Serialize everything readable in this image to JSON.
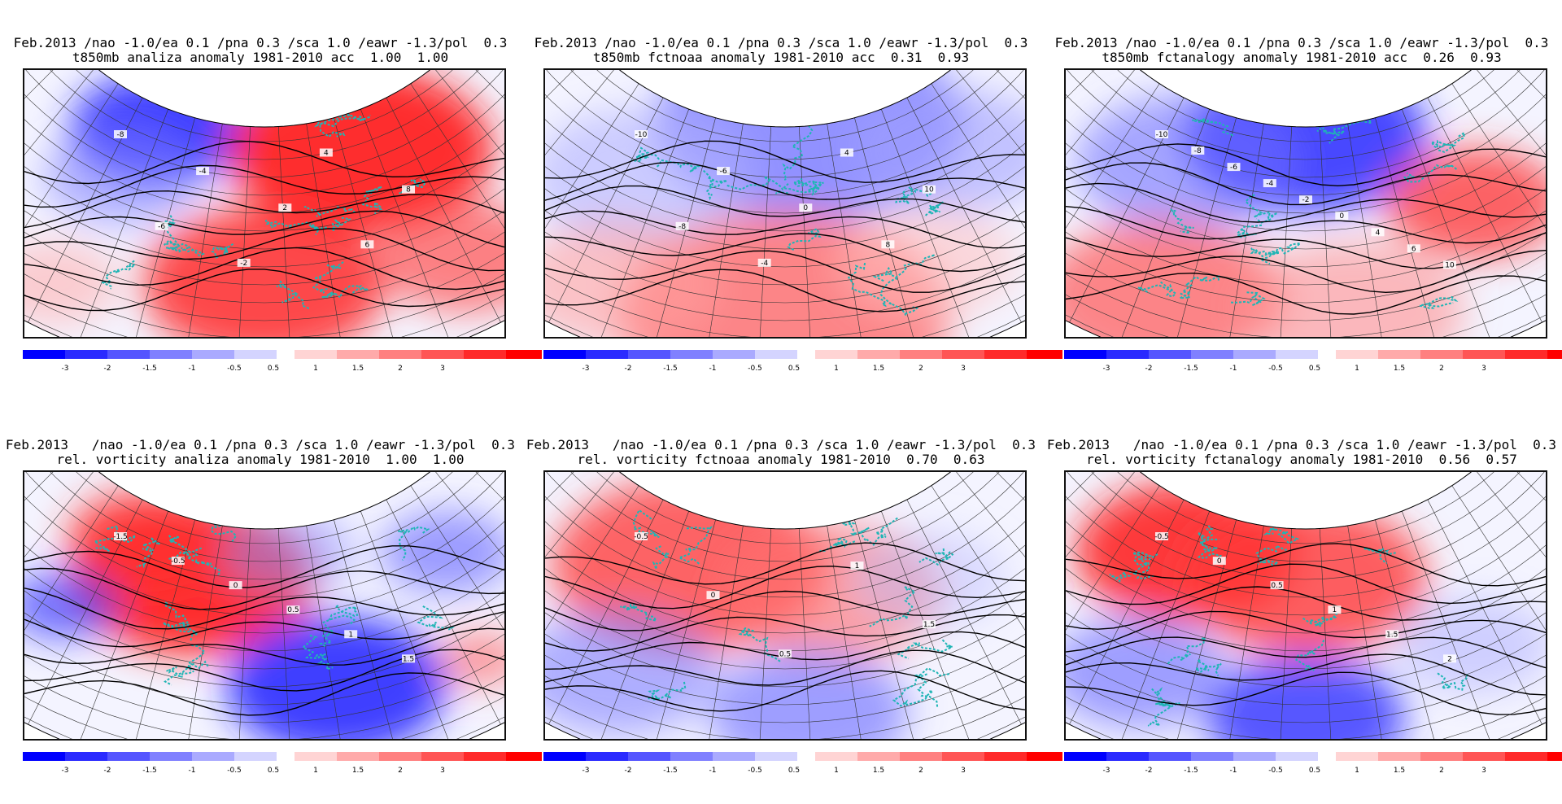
{
  "panels": [
    {
      "title_line1": "Feb.2013 /nao -1.0/ea 0.1 /pna 0.3 /sca 1.0 /eawr -1.3/pol  0.3",
      "title_line2": "t850mb analiza anomaly 1981-2010 acc  1.00  1.00",
      "map": {
        "field": "t850mb",
        "source": "analiza",
        "blobs": [
          {
            "u": 0.28,
            "v": 0.22,
            "r": 0.16,
            "c": "#2020ff",
            "o": 0.85
          },
          {
            "u": 0.2,
            "v": 0.4,
            "r": 0.14,
            "c": "#8080ff",
            "o": 0.55
          },
          {
            "u": 0.7,
            "v": 0.3,
            "r": 0.24,
            "c": "#ff1a1a",
            "o": 0.9
          },
          {
            "u": 0.5,
            "v": 0.8,
            "r": 0.22,
            "c": "#ff2a2a",
            "o": 0.85
          },
          {
            "u": 0.92,
            "v": 0.7,
            "r": 0.16,
            "c": "#ff5050",
            "o": 0.7
          },
          {
            "u": 0.06,
            "v": 0.8,
            "r": 0.12,
            "c": "#ffb0b0",
            "o": 0.6
          }
        ],
        "contour_labels": [
          "-8",
          "-6",
          "-4",
          "-2",
          "2",
          "4",
          "6",
          "8"
        ]
      }
    },
    {
      "title_line1": "Feb.2013 /nao -1.0/ea 0.1 /pna 0.3 /sca 1.0 /eawr -1.3/pol  0.3",
      "title_line2": "t850mb fctnoaa anomaly 1981-2010 acc  0.31  0.93",
      "map": {
        "field": "t850mb",
        "source": "fctnoaa",
        "blobs": [
          {
            "u": 0.55,
            "v": 0.2,
            "r": 0.28,
            "c": "#7070ff",
            "o": 0.75
          },
          {
            "u": 0.2,
            "v": 0.4,
            "r": 0.2,
            "c": "#b0b0ff",
            "o": 0.6
          },
          {
            "u": 0.85,
            "v": 0.3,
            "r": 0.18,
            "c": "#a0a0ff",
            "o": 0.6
          },
          {
            "u": 0.5,
            "v": 0.92,
            "r": 0.3,
            "c": "#ff6060",
            "o": 0.75
          },
          {
            "u": 0.15,
            "v": 0.8,
            "r": 0.18,
            "c": "#ffa0a0",
            "o": 0.6
          },
          {
            "u": 0.8,
            "v": 0.72,
            "r": 0.16,
            "c": "#ffc0c0",
            "o": 0.55
          }
        ],
        "contour_labels": [
          "-10",
          "-8",
          "-6",
          "-4",
          "0",
          "4",
          "8",
          "10"
        ]
      }
    },
    {
      "title_line1": "Feb.2013 /nao -1.0/ea 0.1 /pna 0.3 /sca 1.0 /eawr -1.3/pol  0.3",
      "title_line2": "t850mb fctanalogy anomaly 1981-2010 acc  0.26  0.93",
      "map": {
        "field": "t850mb",
        "source": "fctanalogy",
        "blobs": [
          {
            "u": 0.5,
            "v": 0.25,
            "r": 0.22,
            "c": "#2a2aff",
            "o": 0.85
          },
          {
            "u": 0.25,
            "v": 0.35,
            "r": 0.2,
            "c": "#7070ff",
            "o": 0.6
          },
          {
            "u": 0.85,
            "v": 0.5,
            "r": 0.16,
            "c": "#ff3030",
            "o": 0.75
          },
          {
            "u": 0.2,
            "v": 0.85,
            "r": 0.22,
            "c": "#ff5555",
            "o": 0.7
          },
          {
            "u": 0.6,
            "v": 0.9,
            "r": 0.2,
            "c": "#ff9090",
            "o": 0.6
          }
        ],
        "contour_labels": [
          "-10",
          "-8",
          "-6",
          "-4",
          "-2",
          "0",
          "4",
          "6",
          "10"
        ]
      }
    },
    {
      "title_line1": "Feb.2013   /nao -1.0/ea 0.1 /pna 0.3 /sca 1.0 /eawr -1.3/pol  0.3",
      "title_line2": "rel. vorticity analiza anomaly 1981-2010  1.00  1.00",
      "map": {
        "field": "rel. vorticity",
        "source": "analiza",
        "blobs": [
          {
            "u": 0.35,
            "v": 0.4,
            "r": 0.22,
            "c": "#ff1a1a",
            "o": 0.9
          },
          {
            "u": 0.25,
            "v": 0.25,
            "r": 0.14,
            "c": "#ff3030",
            "o": 0.8
          },
          {
            "u": 0.65,
            "v": 0.8,
            "r": 0.2,
            "c": "#2020ff",
            "o": 0.85
          },
          {
            "u": 0.08,
            "v": 0.5,
            "r": 0.1,
            "c": "#4040ff",
            "o": 0.7
          },
          {
            "u": 0.55,
            "v": 0.3,
            "r": 0.12,
            "c": "#9090ff",
            "o": 0.55
          },
          {
            "u": 0.88,
            "v": 0.3,
            "r": 0.12,
            "c": "#6060ff",
            "o": 0.6
          },
          {
            "u": 0.95,
            "v": 0.7,
            "r": 0.08,
            "c": "#ff6060",
            "o": 0.6
          }
        ],
        "contour_labels": [
          "-1.5",
          "-0.5",
          "0",
          "0.5",
          "1",
          "1.5"
        ]
      }
    },
    {
      "title_line1": "Feb.2013   /nao -1.0/ea 0.1 /pna 0.3 /sca 1.0 /eawr -1.3/pol  0.3",
      "title_line2": "rel. vorticity fctnoaa anomaly 1981-2010  0.70  0.63",
      "map": {
        "field": "rel. vorticity",
        "source": "fctnoaa",
        "blobs": [
          {
            "u": 0.3,
            "v": 0.35,
            "r": 0.25,
            "c": "#ff4040",
            "o": 0.8
          },
          {
            "u": 0.6,
            "v": 0.45,
            "r": 0.2,
            "c": "#ff7070",
            "o": 0.65
          },
          {
            "u": 0.15,
            "v": 0.75,
            "r": 0.18,
            "c": "#8080ff",
            "o": 0.6
          },
          {
            "u": 0.55,
            "v": 0.9,
            "r": 0.18,
            "c": "#7070ff",
            "o": 0.65
          },
          {
            "u": 0.8,
            "v": 0.4,
            "r": 0.14,
            "c": "#c0c0ff",
            "o": 0.5
          }
        ],
        "contour_labels": [
          "-0.5",
          "0",
          "0.5",
          "1",
          "1.5"
        ]
      }
    },
    {
      "title_line1": "Feb.2013   /nao -1.0/ea 0.1 /pna 0.3 /sca 1.0 /eawr -1.3/pol  0.3",
      "title_line2": "rel. vorticity fctanalogy anomaly 1981-2010  0.56  0.57",
      "map": {
        "field": "rel. vorticity",
        "source": "fctanalogy",
        "blobs": [
          {
            "u": 0.25,
            "v": 0.3,
            "r": 0.2,
            "c": "#ff1a1a",
            "o": 0.85
          },
          {
            "u": 0.5,
            "v": 0.4,
            "r": 0.22,
            "c": "#ff3a3a",
            "o": 0.8
          },
          {
            "u": 0.15,
            "v": 0.75,
            "r": 0.16,
            "c": "#7070ff",
            "o": 0.65
          },
          {
            "u": 0.5,
            "v": 0.92,
            "r": 0.18,
            "c": "#3030ff",
            "o": 0.8
          },
          {
            "u": 0.85,
            "v": 0.65,
            "r": 0.14,
            "c": "#b0b0ff",
            "o": 0.55
          }
        ],
        "contour_labels": [
          "-0.5",
          "0",
          "0.5",
          "1",
          "1.5",
          "2"
        ]
      }
    }
  ],
  "colorbar": {
    "boxes": [
      "#0000ff",
      "#2a2aff",
      "#5555ff",
      "#8080ff",
      "#aaaaff",
      "#d4d4ff",
      "#ffffff",
      "#ffd4d4",
      "#ffaaaa",
      "#ff8080",
      "#ff5555",
      "#ff2a2a",
      "#ff0000"
    ],
    "labels": [
      "-3",
      "-2",
      "-1.5",
      "-1",
      "-0.5",
      "0.5",
      "1",
      "1.5",
      "2",
      "3"
    ]
  }
}
